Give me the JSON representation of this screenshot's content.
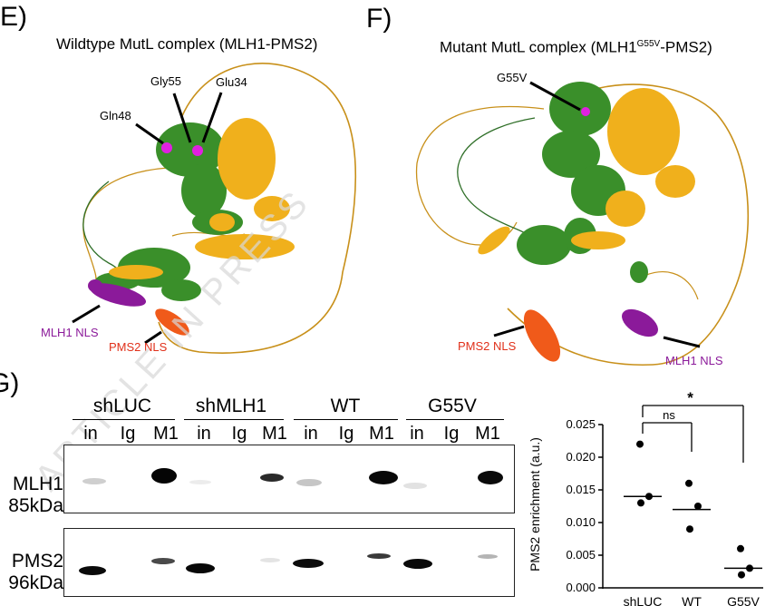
{
  "panel_e": {
    "letter": "E)",
    "title": "Wildtype MutL complex (MLH1-PMS2)",
    "labels": {
      "gln48": "Gln48",
      "gly55": "Gly55",
      "glu34": "Glu34",
      "mlh1_nls": "MLH1 NLS",
      "pms2_nls": "PMS2 NLS"
    }
  },
  "panel_f": {
    "letter": "F)",
    "title_prefix": "Mutant MutL complex (MLH1",
    "title_sup": "G55V",
    "title_suffix": "-PMS2)",
    "labels": {
      "g55v": "G55V",
      "pms2_nls": "PMS2 NLS",
      "mlh1_nls": "MLH1 NLS"
    }
  },
  "watermark": "ARTICLE IN PRESS",
  "panel_g": {
    "letter": "G)",
    "conditions": [
      "shLUC",
      "shMLH1",
      "WT",
      "G55V"
    ],
    "lanes": [
      "in",
      "Ig",
      "M1",
      "in",
      "Ig",
      "M1",
      "in",
      "Ig",
      "M1",
      "in",
      "Ig",
      "M1"
    ],
    "blots": [
      {
        "protein": "MLH1",
        "size": "85kDa"
      },
      {
        "protein": "PMS2",
        "size": "96kDa"
      }
    ]
  },
  "chart_data": {
    "type": "scatter",
    "ylabel": "PMS2 enrichment (a.u.)",
    "categories": [
      "shLUC",
      "WT",
      "G55V"
    ],
    "ylim": [
      0,
      0.025
    ],
    "yticks": [
      "0.000",
      "0.005",
      "0.010",
      "0.015",
      "0.020",
      "0.025"
    ],
    "points": [
      [
        0.022,
        0.013,
        0.014
      ],
      [
        0.016,
        0.009,
        0.0125
      ],
      [
        0.006,
        0.002,
        0.003
      ]
    ],
    "medians": [
      0.014,
      0.012,
      0.003
    ],
    "significance": [
      {
        "from": "shLUC",
        "to": "WT",
        "label": "ns"
      },
      {
        "from": "shLUC",
        "to": "G55V",
        "label": "*"
      }
    ]
  },
  "colors": {
    "mlh1": "#3a8f2a",
    "pms2": "#f0b01c",
    "loop": "#c8901a",
    "mutation": "#e020e0",
    "mlh1_nls": "#8b1a9a",
    "pms2_nls": "#f05a1a"
  }
}
